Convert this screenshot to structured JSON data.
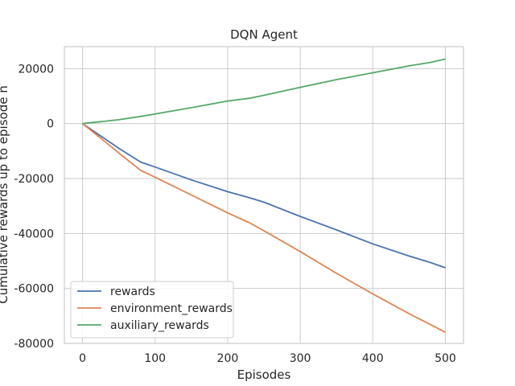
{
  "chart_data": {
    "type": "line",
    "title": "DQN Agent",
    "xlabel": "Episodes",
    "ylabel": "Cumulative rewards up to episode n",
    "xlim": [
      -25,
      525
    ],
    "ylim": [
      -80000,
      28000
    ],
    "xticks": [
      0,
      100,
      200,
      300,
      400,
      500
    ],
    "yticks": [
      20000,
      0,
      -20000,
      -40000,
      -60000,
      -80000
    ],
    "grid": true,
    "legend": "lower-left",
    "x": [
      0,
      25,
      50,
      80,
      100,
      150,
      200,
      230,
      250,
      300,
      350,
      400,
      450,
      480,
      500
    ],
    "series": [
      {
        "name": "rewards",
        "color": "#4c72b0",
        "values": [
          0,
          -4500,
          -9000,
          -14000,
          -15800,
          -20500,
          -24800,
          -27000,
          -28600,
          -33800,
          -38700,
          -43800,
          -48200,
          -50600,
          -52500
        ]
      },
      {
        "name": "environment_rewards",
        "color": "#dd8452",
        "values": [
          0,
          -5300,
          -10700,
          -17000,
          -19500,
          -26000,
          -32500,
          -36100,
          -39000,
          -46600,
          -54500,
          -62000,
          -69200,
          -73200,
          -76000
        ]
      },
      {
        "name": "auxiliary_rewards",
        "color": "#55a868",
        "values": [
          0,
          700,
          1400,
          2600,
          3500,
          5800,
          8200,
          9200,
          10300,
          13200,
          16000,
          18500,
          21000,
          22300,
          23500
        ]
      }
    ]
  }
}
